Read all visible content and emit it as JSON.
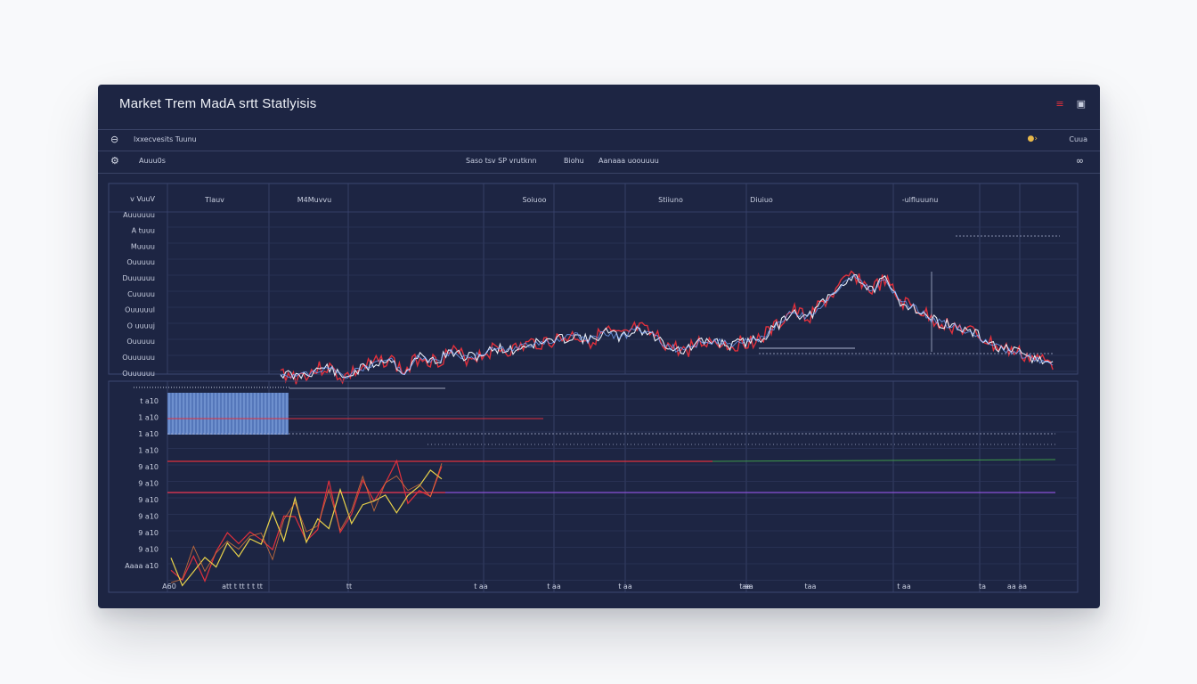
{
  "window": {
    "title": "Market Trem MadA srtt Statlyisis",
    "menu_icon": "menu-icon",
    "restore_icon": "restore-icon"
  },
  "toolbar1": {
    "label": "Ixxecvesits Tuunu",
    "right_label": "Cuua",
    "logo_icon": "logo-icon",
    "status_icon": "status-dot-icon"
  },
  "toolbar2": {
    "label": "Auuu0s",
    "center_label": "Saso tsv SP vrutknn",
    "center_label2": "Biohu",
    "center_label3": "Aanaaa uoouuuu",
    "settings_icon": "gear-icon",
    "link_icon": "link-icon"
  },
  "colors": {
    "panel": "#1d2543",
    "grid": "#3c4670",
    "red": "#e0303c",
    "yellow": "#e8d24a",
    "blue": "#7aa8ff",
    "white": "#e8ecf5",
    "green": "#3e9a4a",
    "purple": "#8a52d8"
  },
  "chart_data": [
    {
      "type": "line",
      "title": "",
      "column_headers": [
        "Tlauv",
        "M4Muvvu",
        "Soiuoo",
        "Stiiuno",
        "Diuiuo",
        "-ulfluuunu"
      ],
      "legend_labels": [
        "v VuuV",
        "Auuuuuu",
        "A tuuu",
        "Muuuu",
        "Ouuuuu",
        "Duuuuuu",
        "Cuuuuu",
        "Ouuuuul",
        "O uuuuj",
        "Ouuuuu",
        "Ouuuuuu",
        "Ouuuuuu"
      ],
      "ylim": [
        0,
        100
      ],
      "series": [
        {
          "name": "",
          "x": [
            0,
            2,
            4,
            6,
            8,
            10,
            12,
            14,
            16,
            18,
            20,
            22,
            24,
            26,
            28,
            30,
            32,
            34,
            36,
            38,
            40,
            42,
            44,
            46,
            48,
            50,
            52,
            54,
            56,
            58,
            60,
            62,
            64,
            66,
            68,
            70,
            72,
            74,
            76,
            78,
            80,
            82,
            84,
            86,
            88,
            90,
            92,
            94,
            96,
            98,
            100
          ],
          "values": [
            8,
            5,
            9,
            13,
            4,
            10,
            15,
            20,
            8,
            22,
            17,
            25,
            20,
            23,
            28,
            26,
            31,
            33,
            35,
            38,
            34,
            41,
            36,
            44,
            38,
            30,
            25,
            32,
            34,
            30,
            33,
            36,
            45,
            58,
            52,
            64,
            75,
            88,
            74,
            82,
            65,
            60,
            51,
            47,
            43,
            38,
            30,
            26,
            22,
            18,
            15
          ]
        }
      ]
    },
    {
      "type": "line",
      "title": "",
      "y_tick_labels": [
        "t a10",
        "1 a10",
        "1 a10",
        "1 a10",
        "9 a10",
        "9 a10",
        "9 a10",
        "9 a10",
        "9 a10",
        "9 a10",
        "Aaaa a10"
      ],
      "x_tick_labels": [
        "A60",
        "att t tt t t tt",
        "tt",
        "t aa",
        "t aa",
        "t aa",
        "t aa",
        "aa",
        "taa",
        "t aa",
        "ta",
        "aa aa"
      ],
      "series": [
        {
          "name": "",
          "values": [
            2,
            6,
            12,
            4,
            15,
            22,
            9,
            18,
            30,
            14,
            26,
            38,
            20,
            33,
            45,
            27,
            40,
            52,
            36,
            48,
            58,
            44,
            55,
            50,
            60
          ]
        },
        {
          "name": "",
          "values": [
            4,
            3,
            9,
            14,
            7,
            19,
            12,
            24,
            17,
            29,
            22,
            35,
            25,
            38,
            30,
            41,
            34,
            46,
            39,
            50,
            43,
            53,
            47,
            56,
            52
          ]
        }
      ]
    }
  ]
}
